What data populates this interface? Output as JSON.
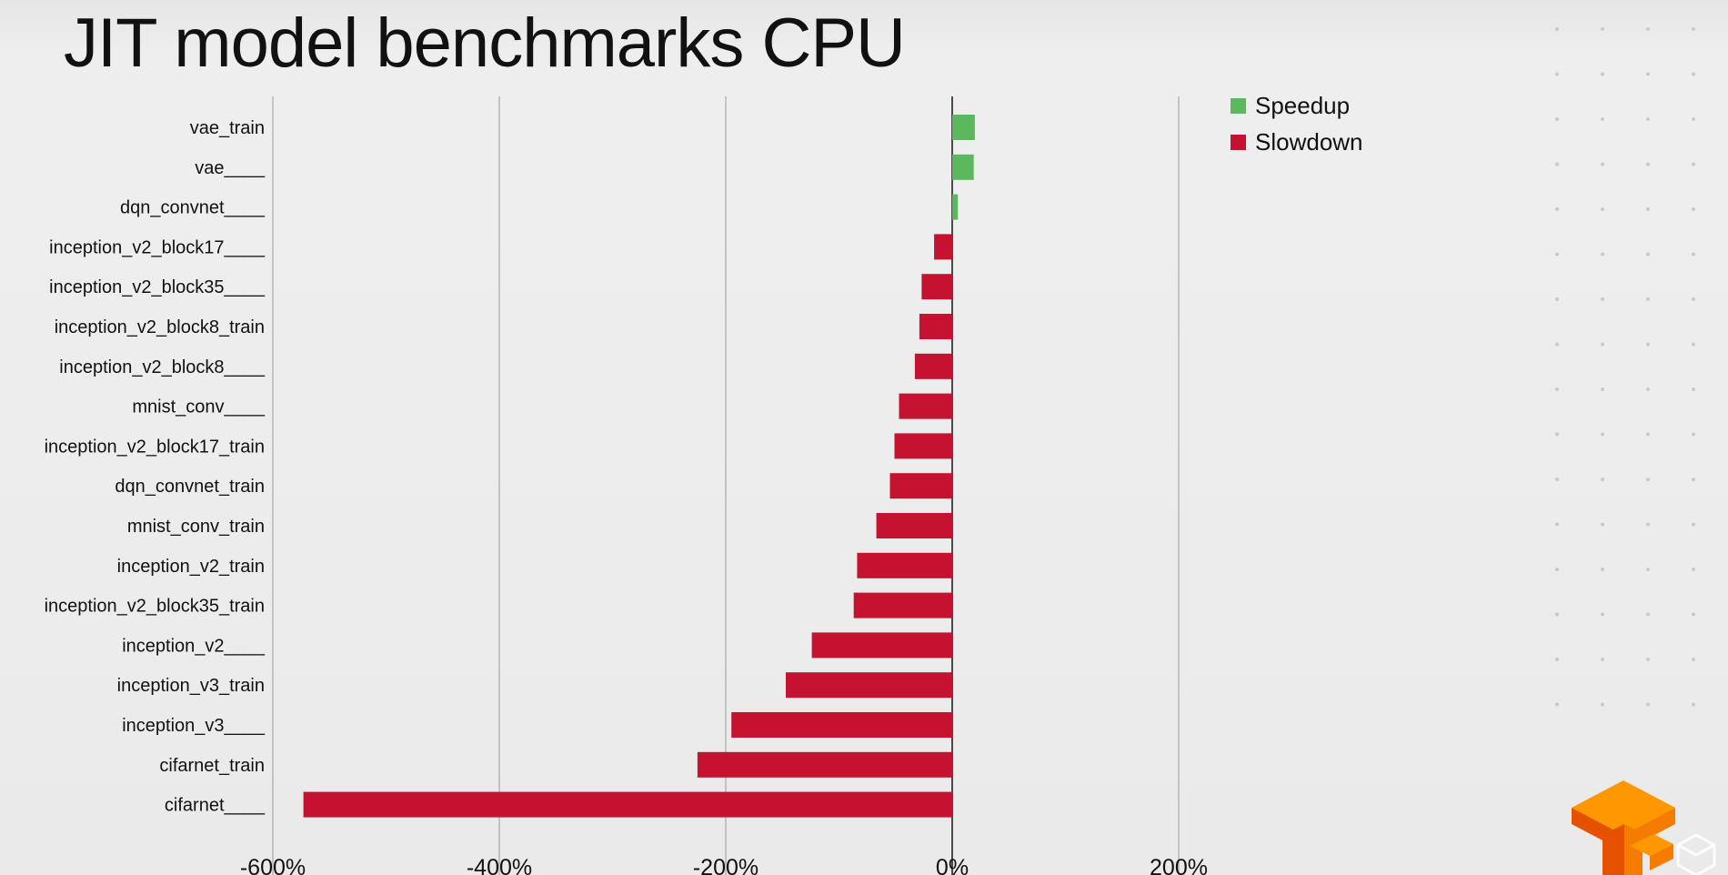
{
  "slide": {
    "title": "JIT model benchmarks CPU"
  },
  "colors": {
    "speedup": "#5cb85c",
    "slowdown": "#c41230",
    "gridline": "#9a9a9a",
    "zero_axis": "#222222",
    "logo_orange": "#ff9800",
    "logo_dark": "#e65100"
  },
  "icons": {
    "logo": "tensorflow-logo-icon",
    "watermark": "cube-watermark-icon"
  },
  "chart_data": {
    "type": "bar",
    "orientation": "horizontal",
    "title": "JIT model benchmarks CPU",
    "xlabel": "",
    "ylabel": "",
    "xlim": [
      -600,
      200
    ],
    "x_ticks": [
      "-600%",
      "-400%",
      "-200%",
      "0%",
      "200%"
    ],
    "x_tick_values": [
      -600,
      -400,
      -200,
      0,
      200
    ],
    "grid": true,
    "legend_position": "top-right",
    "legend": [
      "Speedup",
      "Slowdown"
    ],
    "categories": [
      "vae_train",
      "vae____",
      "dqn_convnet____",
      "inception_v2_block17____",
      "inception_v2_block35____",
      "inception_v2_block8_train",
      "inception_v2_block8____",
      "mnist_conv____",
      "inception_v2_block17_train",
      "dqn_convnet_train",
      "mnist_conv_train",
      "inception_v2_train",
      "inception_v2_block35_train",
      "inception_v2____",
      "inception_v3_train",
      "inception_v3____",
      "cifarnet_train",
      "cifarnet____"
    ],
    "values": [
      20,
      19,
      5,
      -16,
      -27,
      -29,
      -33,
      -47,
      -51,
      -55,
      -67,
      -84,
      -87,
      -124,
      -147,
      -195,
      -225,
      -573
    ]
  }
}
